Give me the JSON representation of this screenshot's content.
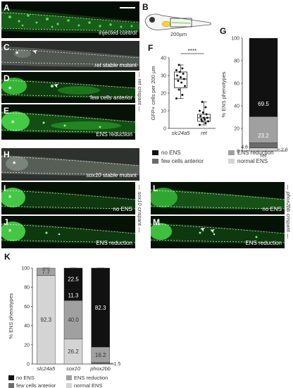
{
  "panels": {
    "A": {
      "letter": "A",
      "caption": "injected control"
    },
    "B": {
      "letter": "B",
      "scale": "200µm"
    },
    "C": {
      "letter": "C",
      "caption_italic": "ret",
      "caption_rest": " stable mutant"
    },
    "D": {
      "letter": "D",
      "caption": "few cells anterior"
    },
    "E": {
      "letter": "E",
      "caption": "ENS reduction"
    },
    "F": {
      "letter": "F"
    },
    "G": {
      "letter": "G"
    },
    "H": {
      "letter": "H",
      "caption_italic": "sox10",
      "caption_rest": " stable mutant"
    },
    "I": {
      "letter": "I",
      "caption": "no ENS"
    },
    "J": {
      "letter": "J",
      "caption": "ENS reduction"
    },
    "K": {
      "letter": "K"
    },
    "L": {
      "letter": "L",
      "caption": "no ENS"
    },
    "M": {
      "letter": "M",
      "caption": "ENS reduction"
    }
  },
  "side_labels": {
    "ret": {
      "gene": "ret",
      "suffix": " crispant"
    },
    "sox10": {
      "gene": "sox10",
      "suffix": " crispant"
    },
    "phox2bb": {
      "gene": "phox2bb",
      "suffix": " crispant"
    }
  },
  "symbols": {
    "asterisk": "*",
    "arrow": "➤"
  },
  "legend_top": {
    "no_ens": "no ENS",
    "few_cells": "few cells anterior",
    "ens_reduction": "ENS reduction",
    "normal_ens": "normal ENS"
  },
  "colors": {
    "no_ens": "#111111",
    "few_cells": "#6b6b6b",
    "ens_reduction": "#a0a0a0",
    "normal_ens": "#d4d4d4",
    "gfp": "#33ff33"
  },
  "chart_data": [
    {
      "id": "F",
      "type": "box",
      "ylabel": "GFP+ cells per 200 µm",
      "categories": [
        "slc24a5",
        "ret"
      ],
      "yticks": [
        0,
        10,
        20,
        30,
        40
      ],
      "ylim": [
        0,
        40
      ],
      "significance": "****",
      "series": [
        {
          "name": "slc24a5",
          "min": 17,
          "q1": 23,
          "median": 28,
          "q3": 32,
          "max": 36,
          "points": [
            17,
            19,
            22,
            24,
            26,
            27,
            28,
            29,
            30,
            31,
            32,
            33,
            34,
            36
          ]
        },
        {
          "name": "ret",
          "min": 2,
          "q1": 4,
          "median": 6,
          "q3": 8,
          "max": 15,
          "points": [
            2,
            3,
            4,
            4,
            5,
            5,
            6,
            6,
            7,
            8,
            9,
            10,
            12,
            15
          ]
        }
      ]
    },
    {
      "id": "G",
      "type": "bar",
      "ylabel": "% ENS phenotypes",
      "categories": [
        "ret"
      ],
      "yticks": [
        0,
        20,
        40,
        60,
        80,
        100
      ],
      "ylim": [
        0,
        100
      ],
      "stack_labels": {
        "normal_ens": "2.6",
        "few_cells": "4.6",
        "ens_reduction": "23.2",
        "no_ens": "69.5"
      },
      "series": [
        {
          "key": "normal_ens",
          "values": [
            2.6
          ]
        },
        {
          "key": "few_cells",
          "values": [
            4.6
          ]
        },
        {
          "key": "ens_reduction",
          "values": [
            23.2
          ]
        },
        {
          "key": "no_ens",
          "values": [
            69.5
          ]
        }
      ]
    },
    {
      "id": "K",
      "type": "bar",
      "ylabel": "% ENS phenotypes",
      "categories": [
        "slc24a5",
        "sox10",
        "phox2bb"
      ],
      "yticks": [
        0,
        20,
        40,
        60,
        80,
        100
      ],
      "ylim": [
        0,
        100
      ],
      "series": [
        {
          "key": "normal_ens",
          "values": [
            92.3,
            26.2,
            0
          ],
          "labels": [
            "92.3",
            "26.2",
            ""
          ]
        },
        {
          "key": "few_cells",
          "values": [
            0,
            0,
            1.5
          ],
          "labels": [
            "",
            "",
            "1.5"
          ]
        },
        {
          "key": "ens_reduction",
          "values": [
            7.7,
            40.0,
            16.2
          ],
          "labels": [
            "7.7",
            "40.0",
            "16.2"
          ]
        },
        {
          "key": "no_ens",
          "values": [
            0,
            11.3,
            0
          ],
          "labels": [
            "",
            "11.3",
            ""
          ]
        },
        {
          "key": "no_ens_top",
          "values": [
            0,
            22.5,
            82.3
          ],
          "labels": [
            "",
            "22.5",
            "82.3"
          ]
        }
      ]
    }
  ]
}
